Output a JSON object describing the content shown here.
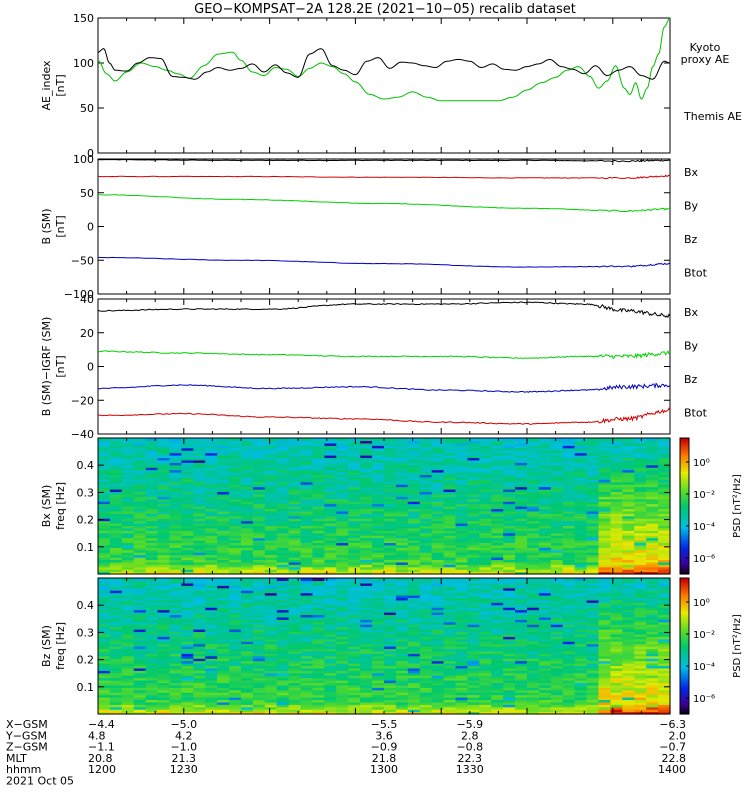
{
  "title": "GEO−KOMPSAT−2A 128.2E (2021−10−05) recalib dataset",
  "colors": {
    "black": "#000000",
    "green": "#00d000",
    "red": "#d00000",
    "blue": "#0000c0"
  },
  "chart_data": [
    {
      "type": "line",
      "panel": "ae",
      "ylabel": "AE_index",
      "yunit": "[nT]",
      "ylim": [
        0,
        150
      ],
      "yticks": [
        "0",
        "50",
        "100",
        "150"
      ],
      "xlim": [
        1200,
        1400
      ],
      "series": [
        {
          "name": "Kyoto",
          "name2": "proxy AE",
          "color": "#00c000",
          "x": [
            1200,
            1203,
            1206,
            1210,
            1215,
            1220,
            1224,
            1228,
            1232,
            1237,
            1242,
            1247,
            1250,
            1254,
            1258,
            1262,
            1266,
            1270,
            1274,
            1278,
            1282,
            1286,
            1290,
            1295,
            1300,
            1305,
            1310,
            1315,
            1320,
            1325,
            1330,
            1335,
            1340,
            1345,
            1350,
            1355,
            1360,
            1364,
            1368,
            1372,
            1375,
            1378,
            1381,
            1384,
            1386,
            1388,
            1390,
            1392,
            1394,
            1396,
            1398,
            1400
          ],
          "y": [
            103,
            88,
            80,
            90,
            100,
            96,
            92,
            88,
            83,
            97,
            110,
            112,
            103,
            90,
            86,
            95,
            93,
            85,
            94,
            100,
            96,
            88,
            79,
            65,
            60,
            62,
            68,
            62,
            58,
            58,
            58,
            58,
            58,
            62,
            70,
            78,
            84,
            92,
            96,
            85,
            72,
            80,
            97,
            72,
            65,
            78,
            60,
            72,
            96,
            110,
            140,
            150
          ]
        },
        {
          "name": "Themis AE",
          "color": "#000000",
          "x": [
            1200,
            1202,
            1204,
            1206,
            1210,
            1214,
            1218,
            1222,
            1226,
            1230,
            1234,
            1238,
            1242,
            1246,
            1250,
            1254,
            1258,
            1262,
            1266,
            1270,
            1274,
            1278,
            1282,
            1286,
            1290,
            1294,
            1298,
            1302,
            1306,
            1310,
            1314,
            1318,
            1322,
            1326,
            1330,
            1334,
            1338,
            1342,
            1346,
            1350,
            1354,
            1358,
            1362,
            1366,
            1370,
            1374,
            1378,
            1382,
            1386,
            1390,
            1394,
            1398,
            1400
          ],
          "y": [
            112,
            116,
            100,
            92,
            91,
            100,
            106,
            105,
            85,
            84,
            82,
            90,
            95,
            92,
            94,
            99,
            90,
            98,
            89,
            84,
            110,
            116,
            97,
            92,
            87,
            102,
            106,
            94,
            101,
            100,
            97,
            95,
            102,
            104,
            102,
            95,
            99,
            93,
            92,
            96,
            99,
            104,
            96,
            93,
            88,
            97,
            86,
            92,
            96,
            86,
            82,
            102,
            100
          ]
        }
      ]
    },
    {
      "type": "line",
      "panel": "b-sm",
      "ylabel": "B (SM)",
      "yunit": "[nT]",
      "ylim": [
        -100,
        100
      ],
      "yticks": [
        "−100",
        "−50",
        "0",
        "50",
        "100"
      ],
      "xlim": [
        1200,
        1400
      ],
      "legend": [
        "Bx",
        "By",
        "Bz",
        "Btot"
      ],
      "series": [
        {
          "name": "Btot",
          "color": "#000000",
          "x": [
            1200,
            1250,
            1300,
            1350,
            1385,
            1400
          ],
          "y": [
            99,
            98,
            98,
            98,
            97,
            98
          ]
        },
        {
          "name": "Bz",
          "color": "#d00000",
          "x": [
            1200,
            1250,
            1300,
            1350,
            1385,
            1400
          ],
          "y": [
            74,
            74,
            73,
            72,
            72,
            75
          ]
        },
        {
          "name": "By",
          "color": "#00d000",
          "x": [
            1200,
            1250,
            1300,
            1350,
            1385,
            1400
          ],
          "y": [
            47,
            40,
            34,
            27,
            23,
            26
          ]
        },
        {
          "name": "Bx",
          "color": "#0000c0",
          "x": [
            1200,
            1250,
            1300,
            1350,
            1385,
            1400
          ],
          "y": [
            -46,
            -50,
            -55,
            -60,
            -59,
            -55
          ]
        }
      ]
    },
    {
      "type": "line",
      "panel": "b-igrf",
      "ylabel": "B (SM)−IGRF (SM)",
      "yunit": "[nT]",
      "ylim": [
        -40,
        40
      ],
      "yticks": [
        "−40",
        "−20",
        "0",
        "20",
        "40"
      ],
      "xlim": [
        1200,
        1400
      ],
      "legend": [
        "Bx",
        "By",
        "Bz",
        "Btot"
      ],
      "series": [
        {
          "name": "Btot",
          "color": "#000000",
          "x": [
            1200,
            1230,
            1260,
            1290,
            1320,
            1350,
            1370,
            1385,
            1400
          ],
          "y": [
            33,
            34,
            34,
            37,
            37,
            38,
            37,
            33,
            30
          ]
        },
        {
          "name": "By",
          "color": "#00d000",
          "x": [
            1200,
            1230,
            1260,
            1290,
            1320,
            1350,
            1370,
            1385,
            1400
          ],
          "y": [
            9,
            8,
            7,
            6,
            6,
            5,
            6,
            6,
            8
          ]
        },
        {
          "name": "Bx",
          "color": "#0000c0",
          "x": [
            1200,
            1230,
            1260,
            1290,
            1320,
            1350,
            1370,
            1385,
            1400
          ],
          "y": [
            -13,
            -11,
            -13,
            -12,
            -14,
            -15,
            -14,
            -12,
            -11
          ]
        },
        {
          "name": "Bz",
          "color": "#d00000",
          "x": [
            1200,
            1230,
            1260,
            1290,
            1320,
            1350,
            1370,
            1385,
            1400
          ],
          "y": [
            -29,
            -28,
            -30,
            -31,
            -33,
            -34,
            -33,
            -31,
            -26
          ]
        }
      ]
    },
    {
      "type": "heatmap",
      "panel": "spec-bx",
      "ylabel": "Bx (SM)",
      "ylabel2": "freq [Hz]",
      "ylim": [
        0,
        0.5
      ],
      "yticks": [
        "0.1",
        "0.2",
        "0.3",
        "0.4"
      ],
      "xlim": [
        1200,
        1400
      ],
      "colorbar_label": "PSD [nT²/Hz]",
      "colorbar_ticks": [
        "10⁰",
        "10⁻²",
        "10⁻⁴",
        "10⁻⁶"
      ]
    },
    {
      "type": "heatmap",
      "panel": "spec-bz",
      "ylabel": "Bz (SM)",
      "ylabel2": "freq [Hz]",
      "ylim": [
        0,
        0.5
      ],
      "yticks": [
        "0.1",
        "0.2",
        "0.3",
        "0.4"
      ],
      "xlim": [
        1200,
        1400
      ],
      "colorbar_label": "PSD [nT²/Hz]",
      "colorbar_ticks": [
        "10⁰",
        "10⁻²",
        "10⁻⁴",
        "10⁻⁶"
      ]
    }
  ],
  "xaxis_table": {
    "labels": [
      "X−GSM",
      "Y−GSM",
      "Z−GSM",
      "MLT",
      "hhmm",
      "2021 Oct 05"
    ],
    "columns": [
      {
        "time": 1200,
        "values": [
          "−4.4",
          "4.8",
          "−1.1",
          "20.8",
          "1200"
        ]
      },
      {
        "time": 1230,
        "values": [
          "−5.0",
          "4.2",
          "−1.0",
          "21.3",
          "1230"
        ]
      },
      {
        "time": 1300,
        "values": [
          "−5.5",
          "3.6",
          "−0.9",
          "21.8",
          "1300"
        ]
      },
      {
        "time": 1330,
        "values": [
          "−5.9",
          "2.8",
          "−0.8",
          "22.3",
          "1330"
        ]
      },
      {
        "time": 1400,
        "values": [
          "−6.3",
          "2.0",
          "−0.7",
          "22.8",
          "1400"
        ]
      }
    ]
  }
}
